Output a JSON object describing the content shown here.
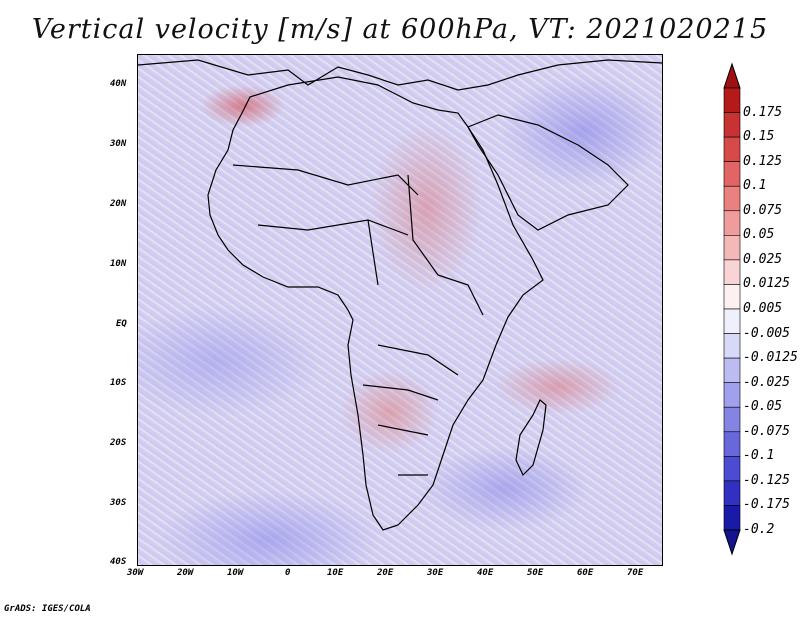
{
  "title": "Vertical velocity [m/s] at 600hPa, VT: 2021020215",
  "credit": "GrADS: IGES/COLA",
  "map": {
    "lat_labels": [
      "40N",
      "30N",
      "20N",
      "10N",
      "EQ",
      "10S",
      "20S",
      "30S",
      "40S"
    ],
    "lon_labels": [
      "30W",
      "20W",
      "10W",
      "0",
      "10E",
      "20E",
      "30E",
      "40E",
      "50E",
      "60E",
      "70E"
    ]
  },
  "colorbar": {
    "labels": [
      "0.175",
      "0.15",
      "0.125",
      "0.1",
      "0.075",
      "0.05",
      "0.025",
      "0.0125",
      "0.005",
      "-0.005",
      "-0.0125",
      "-0.025",
      "-0.05",
      "-0.075",
      "-0.1",
      "-0.125",
      "-0.175",
      "-0.2"
    ],
    "colors": [
      "#b51a1a",
      "#c83232",
      "#d84a4a",
      "#e26464",
      "#ea8080",
      "#f09c9c",
      "#f5b8b8",
      "#f9d4d4",
      "#fdf0f0",
      "#f0f0fd",
      "#d8d8f8",
      "#bcbcf2",
      "#a0a0ec",
      "#8484e4",
      "#6868dc",
      "#4c4cd2",
      "#3030c2",
      "#1a1aa8"
    ],
    "top_arrow_color": "#a01010",
    "bottom_arrow_color": "#14148f"
  }
}
